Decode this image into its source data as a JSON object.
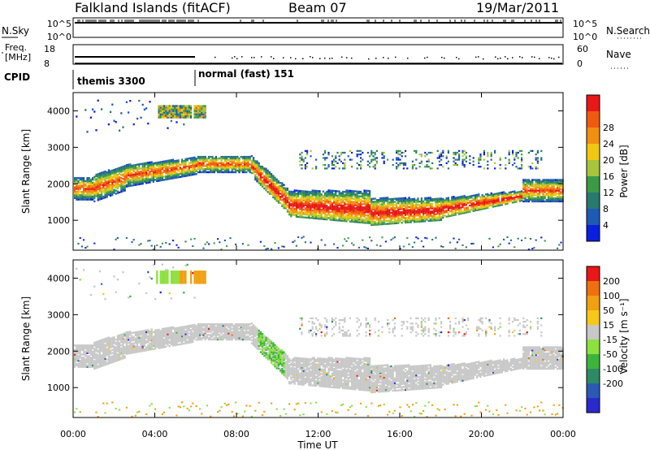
{
  "header": {
    "station": "Falkland Islands (fitACF)",
    "beam": "Beam 07",
    "date": "19/Mar/2011"
  },
  "status_panels": {
    "nsky_label": "N.Sky",
    "nsky_ticks": [
      "10^5",
      "10^0"
    ],
    "nsearch_label": "N.Search",
    "nsearch_ticks": [
      "10^5",
      "10^0"
    ],
    "freq_label_1": "Freq.",
    "freq_label_2": "[MHz]",
    "freq_ticks": [
      "18",
      "8"
    ],
    "nave_label": "Nave",
    "nave_ticks": [
      "60",
      "0"
    ],
    "cpid_label": "CPID",
    "cpid_modes": [
      {
        "name": "themis 3300",
        "start_hour": 0
      },
      {
        "name": "normal (fast) 151",
        "start_hour": 6
      }
    ]
  },
  "chart_data": [
    {
      "type": "heatmap",
      "name": "power",
      "ylabel": "Slant Range [km]",
      "xlabel": "",
      "xlim": [
        0,
        24
      ],
      "ylim": [
        180,
        4500
      ],
      "yticks": [
        "1000",
        "2000",
        "3000",
        "4000"
      ],
      "colorbar_label": "Power [dB]",
      "colorbar_ticks": [
        "4",
        "8",
        "12",
        "16",
        "20",
        "24",
        "28"
      ],
      "colorbar_colors": [
        "#0a1ee0",
        "#1e5ab4",
        "#287a6e",
        "#3c9a46",
        "#a8c43a",
        "#f0c810",
        "#f09010",
        "#f05a10",
        "#e81818"
      ]
    },
    {
      "type": "heatmap",
      "name": "velocity",
      "ylabel": "Slant Range [km]",
      "xlabel": "Time UT",
      "xlim": [
        0,
        24
      ],
      "ylim": [
        180,
        4500
      ],
      "xticks": [
        "00:00",
        "04:00",
        "08:00",
        "12:00",
        "16:00",
        "20:00",
        "00:00"
      ],
      "yticks": [
        "1000",
        "2000",
        "3000",
        "4000"
      ],
      "colorbar_label": "Velocity [m s⁻¹]",
      "colorbar_ticks": [
        "200",
        "100",
        "50",
        "15",
        "-15",
        "-50",
        "-100",
        "-200"
      ],
      "colorbar_colors": [
        "#2a2acc",
        "#2a5ab4",
        "#2e8a64",
        "#3cb43c",
        "#8ce040",
        "#c8c8c8",
        "#f8c818",
        "#f0a010",
        "#f07010",
        "#e81818"
      ]
    }
  ]
}
